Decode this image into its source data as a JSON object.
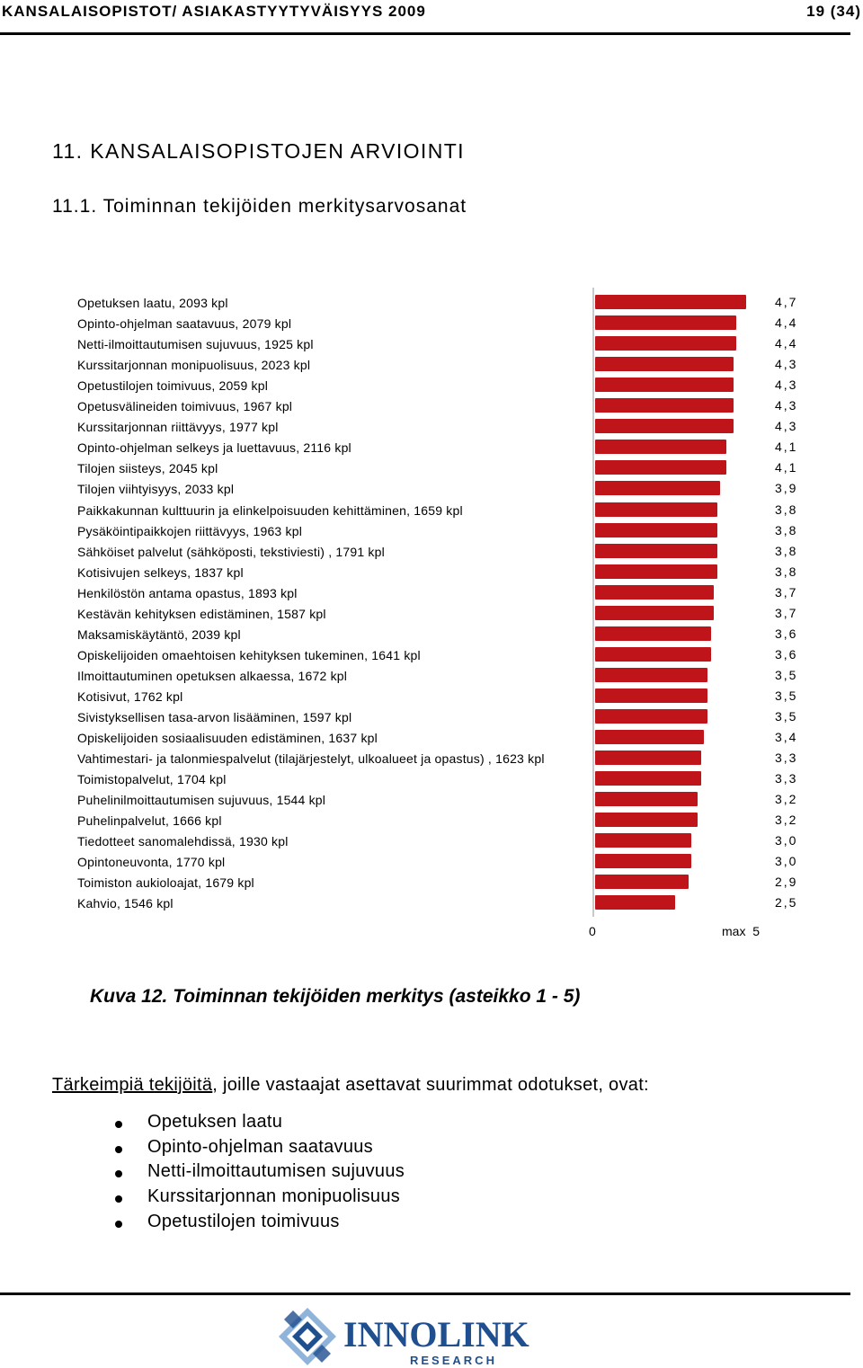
{
  "header": {
    "title": "KANSALAISOPISTOT/ ASIAKASTYYTYVÄISYYS 2009",
    "page": "19 (34)"
  },
  "section": {
    "heading": "11. KANSALAISOPISTOJEN ARVIOINTI",
    "subheading": "11.1. Toiminnan tekijöiden merkitysarvosanat"
  },
  "chart_data": {
    "type": "bar",
    "orientation": "horizontal",
    "categories": [
      "Opetuksen laatu, 2093 kpl",
      "Opinto-ohjelman saatavuus, 2079 kpl",
      "Netti-ilmoittautumisen sujuvuus, 1925 kpl",
      "Kurssitarjonnan monipuolisuus, 2023 kpl",
      "Opetustilojen toimivuus, 2059 kpl",
      "Opetusvälineiden toimivuus, 1967 kpl",
      "Kurssitarjonnan riittävyys, 1977 kpl",
      "Opinto-ohjelman selkeys ja luettavuus, 2116 kpl",
      "Tilojen siisteys, 2045 kpl",
      "Tilojen viihtyisyys, 2033 kpl",
      "Paikkakunnan kulttuurin ja elinkelpoisuuden kehittäminen, 1659 kpl",
      "Pysäköintipaikkojen riittävyys, 1963 kpl",
      "Sähköiset palvelut (sähköposti, tekstiviesti) , 1791 kpl",
      "Kotisivujen selkeys, 1837 kpl",
      "Henkilöstön antama opastus, 1893 kpl",
      "Kestävän kehityksen edistäminen, 1587 kpl",
      "Maksamiskäytäntö, 2039 kpl",
      "Opiskelijoiden omaehtoisen kehityksen tukeminen, 1641 kpl",
      "Ilmoittautuminen opetuksen alkaessa, 1672 kpl",
      "Kotisivut, 1762 kpl",
      "Sivistyksellisen tasa-arvon lisääminen, 1597 kpl",
      "Opiskelijoiden sosiaalisuuden edistäminen, 1637 kpl",
      "Vahtimestari- ja talonmiespalvelut (tilajärjestelyt, ulkoalueet ja opastus) , 1623 kpl",
      "Toimistopalvelut, 1704 kpl",
      "Puhelinilmoittautumisen sujuvuus, 1544 kpl",
      "Puhelinpalvelut, 1666 kpl",
      "Tiedotteet sanomalehdissä, 1930 kpl",
      "Opintoneuvonta, 1770 kpl",
      "Toimiston aukioloajat, 1679 kpl",
      "Kahvio, 1546 kpl"
    ],
    "values": [
      4.7,
      4.4,
      4.4,
      4.3,
      4.3,
      4.3,
      4.3,
      4.1,
      4.1,
      3.9,
      3.8,
      3.8,
      3.8,
      3.8,
      3.7,
      3.7,
      3.6,
      3.6,
      3.5,
      3.5,
      3.5,
      3.4,
      3.3,
      3.3,
      3.2,
      3.2,
      3.0,
      3.0,
      2.9,
      2.5
    ],
    "value_labels": [
      "4,7",
      "4,4",
      "4,4",
      "4,3",
      "4,3",
      "4,3",
      "4,3",
      "4,1",
      "4,1",
      "3,9",
      "3,8",
      "3,8",
      "3,8",
      "3,8",
      "3,7",
      "3,7",
      "3,6",
      "3,6",
      "3,5",
      "3,5",
      "3,5",
      "3,4",
      "3,3",
      "3,3",
      "3,2",
      "3,2",
      "3,0",
      "3,0",
      "2,9",
      "2,5"
    ],
    "xlim": [
      0,
      5
    ],
    "axis_min_label": "0",
    "axis_max_label": "max  5",
    "bar_color": "#c0141b",
    "grid": false
  },
  "caption": "Kuva 12. Toiminnan tekijöiden merkitys (asteikko 1 - 5)",
  "paragraph": {
    "underlined": "Tärkeimpiä tekijöitä",
    "rest": ", joille vastaajat asettavat suurimmat odotukset, ovat:"
  },
  "bullets": [
    "Opetuksen laatu",
    "Opinto-ohjelman saatavuus",
    "Netti-ilmoittautumisen sujuvuus",
    "Kurssitarjonnan monipuolisuus",
    "Opetustilojen toimivuus"
  ],
  "footer": {
    "logo_name": "INNOLINK",
    "logo_sub": "RESEARCH"
  },
  "colors": {
    "logo_blue": "#1f4f8f",
    "logo_light": "#8fb3d9",
    "bar": "#c0141b"
  }
}
